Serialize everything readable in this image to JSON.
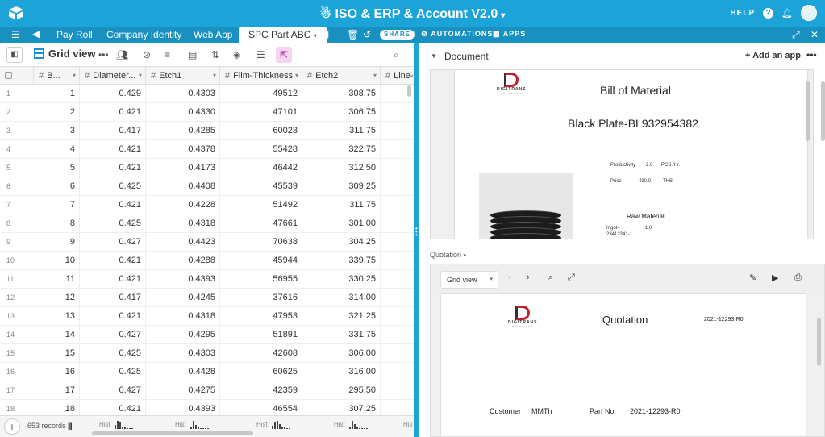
{
  "app": {
    "title": "ISO & ERP & Account V2.0",
    "help": "HELP"
  },
  "tabs": [
    {
      "label": "Pay Roll"
    },
    {
      "label": "Company Identity"
    },
    {
      "label": "Web App"
    },
    {
      "label": "SPC Part ABC"
    }
  ],
  "tabbar": {
    "share": "SHARE",
    "automations": "AUTOMATIONS",
    "apps": "APPS"
  },
  "toolbar": {
    "view_name": "Grid view"
  },
  "grid": {
    "columns": [
      {
        "name": "B...",
        "type": "number"
      },
      {
        "name": "Diameter...",
        "type": "number"
      },
      {
        "name": "Etch1",
        "type": "number"
      },
      {
        "name": "Film-Thickness",
        "type": "number"
      },
      {
        "name": "Etch2",
        "type": "number"
      },
      {
        "name": "Line-",
        "type": "number"
      }
    ],
    "rows": [
      {
        "n": "1",
        "b": "1",
        "diam": "0.429",
        "etch1": "0.4303",
        "film": "49512",
        "etch2": "308.75"
      },
      {
        "n": "2",
        "b": "2",
        "diam": "0.421",
        "etch1": "0.4330",
        "film": "47101",
        "etch2": "306.75"
      },
      {
        "n": "3",
        "b": "3",
        "diam": "0.417",
        "etch1": "0.4285",
        "film": "60023",
        "etch2": "311.75"
      },
      {
        "n": "4",
        "b": "4",
        "diam": "0.421",
        "etch1": "0.4378",
        "film": "55428",
        "etch2": "322.75"
      },
      {
        "n": "5",
        "b": "5",
        "diam": "0.421",
        "etch1": "0.4173",
        "film": "46442",
        "etch2": "312.50"
      },
      {
        "n": "6",
        "b": "6",
        "diam": "0.425",
        "etch1": "0.4408",
        "film": "45539",
        "etch2": "309.25"
      },
      {
        "n": "7",
        "b": "7",
        "diam": "0.421",
        "etch1": "0.4228",
        "film": "51492",
        "etch2": "311.75"
      },
      {
        "n": "8",
        "b": "8",
        "diam": "0.425",
        "etch1": "0.4318",
        "film": "47661",
        "etch2": "301.00"
      },
      {
        "n": "9",
        "b": "9",
        "diam": "0.427",
        "etch1": "0.4423",
        "film": "70638",
        "etch2": "304.25"
      },
      {
        "n": "10",
        "b": "10",
        "diam": "0.421",
        "etch1": "0.4288",
        "film": "45944",
        "etch2": "339.75"
      },
      {
        "n": "11",
        "b": "11",
        "diam": "0.421",
        "etch1": "0.4393",
        "film": "56955",
        "etch2": "330.25"
      },
      {
        "n": "12",
        "b": "12",
        "diam": "0.417",
        "etch1": "0.4245",
        "film": "37616",
        "etch2": "314.00"
      },
      {
        "n": "13",
        "b": "13",
        "diam": "0.421",
        "etch1": "0.4318",
        "film": "47953",
        "etch2": "321.25"
      },
      {
        "n": "14",
        "b": "14",
        "diam": "0.427",
        "etch1": "0.4295",
        "film": "51891",
        "etch2": "331.75"
      },
      {
        "n": "15",
        "b": "15",
        "diam": "0.425",
        "etch1": "0.4303",
        "film": "42608",
        "etch2": "306.00"
      },
      {
        "n": "16",
        "b": "16",
        "diam": "0.425",
        "etch1": "0.4428",
        "film": "60625",
        "etch2": "316.00"
      },
      {
        "n": "17",
        "b": "17",
        "diam": "0.427",
        "etch1": "0.4275",
        "film": "42359",
        "etch2": "295.50"
      },
      {
        "n": "18",
        "b": "18",
        "diam": "0.421",
        "etch1": "0.4393",
        "film": "46554",
        "etch2": "307.25"
      }
    ],
    "records": "653 records",
    "hist_label": "Hist",
    "hist_last": "His"
  },
  "apps": {
    "document_label": "Document",
    "add_app": "+ Add an app",
    "bom": {
      "title": "Bill of Material",
      "subtitle": "Black Plate-BL932954382",
      "productivity_label": "Productivity",
      "productivity_value": "2.0",
      "productivity_unit": "PCS./Hr.",
      "price_label": "Price",
      "price_value": "430.0",
      "price_unit": "THB",
      "raw_material": "Raw Material",
      "ingot_code": "Ingot-",
      "ingot_code2": "23412341-1",
      "ingot_qty": "1.0"
    },
    "logo": {
      "name": "DIGITRANS",
      "tag": "SOLUTIONS"
    },
    "quotation_label": "Quotation",
    "quotation": {
      "view": "Grid view",
      "title": "Quotation",
      "number": "2021-12293-R0",
      "customer_label": "Customer",
      "customer_value": "MMTh",
      "part_label": "Part No.",
      "part_value": "2021-12293-R0"
    }
  },
  "colors": {
    "header": "#1ca4d9",
    "tabbar": "#1891c0",
    "accent": "#1c8fd1",
    "logo_red": "#c0202a"
  }
}
